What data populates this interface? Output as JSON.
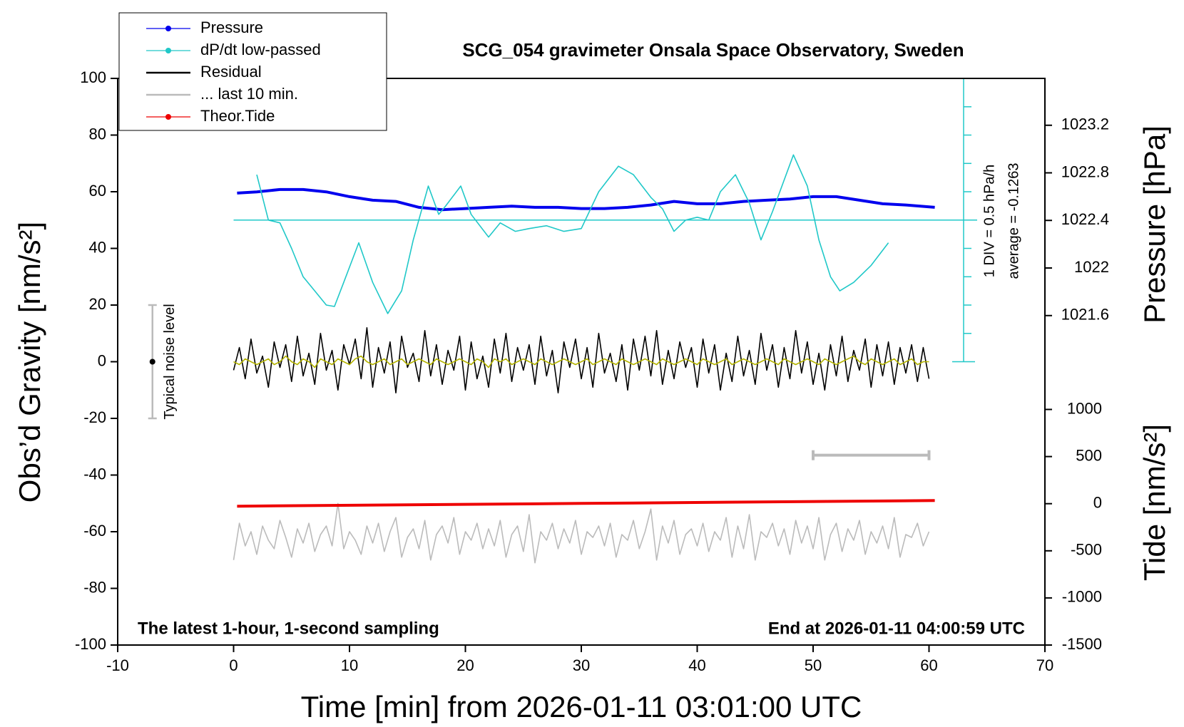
{
  "chart_data": {
    "type": "line",
    "title": "SCG_054 gravimeter Onsala Space Observatory, Sweden",
    "xlabel": "Time [min] from 2026-01-11 03:01:00 UTC",
    "ylabel": "Obs’d Gravity [nm/s²]",
    "y2label": "Pressure [hPa]",
    "y3label": "Tide [nm/s²]",
    "xlim": [
      -10,
      70
    ],
    "xticks": [
      -10,
      0,
      10,
      20,
      30,
      40,
      50,
      60,
      70
    ],
    "ylim": [
      -100,
      100
    ],
    "yticks": [
      -100,
      -80,
      -60,
      -40,
      -20,
      0,
      20,
      40,
      60,
      80,
      100
    ],
    "y2lim": [
      1018.83,
      1023.594
    ],
    "y2ticks": [
      1021.6,
      1022.0,
      1022.4,
      1022.8,
      1023.2
    ],
    "y3lim": [
      -1500,
      4513
    ],
    "y3ticks": [
      -1500,
      -1000,
      -500,
      0,
      500,
      1000
    ],
    "legend": "upper left",
    "annotations": [
      "1 DIV = 0.5 hPa/h",
      "average = -0.1263",
      "The latest 1-hour, 1-second sampling",
      "End at 2026-01-11 04:00:59 UTC"
    ],
    "noise_level": {
      "label": "Typical noise level",
      "x": -7,
      "value": 0,
      "error": 20
    },
    "last10_bar": {
      "x": [
        50,
        60
      ],
      "value": -33
    },
    "x": [
      0,
      0.5,
      1,
      1.5,
      2,
      2.5,
      3,
      3.5,
      4,
      4.5,
      5,
      5.5,
      6,
      6.5,
      7,
      7.5,
      8,
      8.5,
      9,
      9.5,
      10,
      10.5,
      11,
      11.5,
      12,
      12.5,
      13,
      13.5,
      14,
      14.5,
      15,
      15.5,
      16,
      16.5,
      17,
      17.5,
      18,
      18.5,
      19,
      19.5,
      20,
      20.5,
      21,
      21.5,
      22,
      22.5,
      23,
      23.5,
      24,
      24.5,
      25,
      25.5,
      26,
      26.5,
      27,
      27.5,
      28,
      28.5,
      29,
      29.5,
      30,
      30.5,
      31,
      31.5,
      32,
      32.5,
      33,
      33.5,
      34,
      34.5,
      35,
      35.5,
      36,
      36.5,
      37,
      37.5,
      38,
      38.5,
      39,
      39.5,
      40,
      40.5,
      41,
      41.5,
      42,
      42.5,
      43,
      43.5,
      44,
      44.5,
      45,
      45.5,
      46,
      46.5,
      47,
      47.5,
      48,
      48.5,
      49,
      49.5,
      50,
      50.5,
      51,
      51.5,
      52,
      52.5,
      53,
      53.5,
      54,
      54.5,
      55,
      55.5,
      56,
      56.5,
      57,
      57.5,
      58,
      58.5,
      59,
      59.5,
      60
    ],
    "series": [
      {
        "name": "Pressure",
        "color": "#0000ee",
        "marker": "o",
        "axis": "y2",
        "x": [
          0.3,
          2,
          4,
          6,
          8,
          10,
          12,
          14,
          16,
          18,
          20,
          22,
          24,
          26,
          28,
          30,
          32,
          34,
          36,
          38,
          40,
          42,
          44,
          46,
          48,
          50,
          52,
          54,
          56,
          58,
          60.5
        ],
        "values": [
          1022.63,
          1022.64,
          1022.66,
          1022.66,
          1022.64,
          1022.6,
          1022.57,
          1022.56,
          1022.51,
          1022.49,
          1022.5,
          1022.51,
          1022.52,
          1022.51,
          1022.51,
          1022.5,
          1022.5,
          1022.51,
          1022.53,
          1022.56,
          1022.54,
          1022.54,
          1022.56,
          1022.57,
          1022.58,
          1022.6,
          1022.6,
          1022.57,
          1022.54,
          1022.53,
          1022.51
        ]
      },
      {
        "name": "dP/dt low-passed",
        "color": "#20c8c8",
        "marker": "o",
        "x": [
          2,
          3,
          4,
          5,
          6,
          7,
          8,
          8.7,
          9.5,
          10.8,
          12,
          13.3,
          14.5,
          15.5,
          16.8,
          17.7,
          18.3,
          19.6,
          20.5,
          22,
          23,
          24.3,
          25.5,
          27,
          28.5,
          30,
          31.5,
          33.2,
          34.5,
          36,
          37,
          38,
          39,
          40,
          41,
          42,
          43.3,
          44.5,
          45.5,
          46.5,
          48.3,
          49.5,
          50.5,
          51.5,
          52.3,
          53.5,
          55,
          56.5
        ],
        "values": [
          66,
          50,
          49,
          40,
          30,
          25,
          20,
          19.5,
          28,
          42,
          28,
          17,
          25,
          43,
          62,
          52,
          55,
          62,
          52,
          44,
          49,
          46,
          47,
          48,
          46,
          47,
          60,
          69,
          66,
          58,
          54,
          46,
          50,
          51,
          50,
          60,
          66,
          56,
          43,
          53,
          73,
          62,
          43,
          30,
          25,
          28,
          34,
          42
        ]
      },
      {
        "name": "Residual",
        "color": "#000000",
        "values": [
          -3,
          5,
          -6,
          8,
          -4,
          2,
          -9,
          7,
          -2,
          6,
          -7,
          9,
          -5,
          3,
          -8,
          10,
          -3,
          4,
          -10,
          6,
          -1,
          8,
          -6,
          12,
          -9,
          5,
          -4,
          7,
          -11,
          9,
          -2,
          3,
          -7,
          11,
          -5,
          6,
          -8,
          4,
          -3,
          9,
          -10,
          7,
          -6,
          2,
          -9,
          8,
          -4,
          10,
          -7,
          5,
          -3,
          6,
          -8,
          9,
          -5,
          4,
          -11,
          7,
          -2,
          8,
          -6,
          5,
          -9,
          10,
          -4,
          3,
          -7,
          6,
          -10,
          8,
          -3,
          9,
          -5,
          11,
          -8,
          4,
          -6,
          7,
          -2,
          5,
          -9,
          8,
          -4,
          6,
          -10,
          3,
          -7,
          9,
          -5,
          4,
          -8,
          10,
          -3,
          6,
          -9,
          5,
          -6,
          11,
          -4,
          7,
          -8,
          3,
          -10,
          6,
          -5,
          9,
          -7,
          4,
          -3,
          8,
          -9,
          6,
          -5,
          7,
          -8,
          5,
          -4,
          6,
          -7,
          5,
          -6
        ]
      },
      {
        "color": "#b4b400",
        "values": [
          0,
          -1,
          1,
          0,
          -1,
          0,
          1,
          -1,
          0,
          2,
          0,
          -1,
          1,
          0,
          -2,
          1,
          0,
          -1,
          1,
          0,
          -1,
          1,
          2,
          0,
          -1,
          0,
          1,
          -1,
          0,
          1,
          -1,
          0,
          1,
          0,
          -1,
          1,
          0,
          -1,
          0,
          1,
          0,
          -1,
          1,
          0,
          -2,
          1,
          0,
          1,
          -1,
          0,
          1,
          0,
          -1,
          1,
          0,
          -1,
          0,
          1,
          0,
          -1,
          0,
          1,
          -1,
          0,
          1,
          0,
          -1,
          1,
          0,
          -1,
          0,
          1,
          0,
          -1,
          1,
          0,
          -1,
          0,
          1,
          0,
          -1,
          1,
          0,
          -1,
          0,
          1,
          -1,
          0,
          1,
          0,
          -1,
          0,
          1,
          0,
          -1,
          1,
          0,
          -1,
          0,
          1,
          0,
          -1,
          1,
          0,
          -1,
          0,
          1,
          2,
          0,
          -1,
          1,
          0,
          -1,
          0,
          1,
          -1,
          0,
          1,
          -1,
          0,
          0
        ]
      },
      {
        "name": "... last 10 min.",
        "color": "#bbbbbb",
        "values": [
          -70,
          -57,
          -65,
          -60,
          -68,
          -58,
          -63,
          -66,
          -56,
          -62,
          -69,
          -59,
          -64,
          -57,
          -67,
          -61,
          -58,
          -65,
          -50,
          -66,
          -60,
          -63,
          -68,
          -58,
          -64,
          -57,
          -67,
          -60,
          -55,
          -69,
          -62,
          -59,
          -66,
          -56,
          -70,
          -61,
          -58,
          -64,
          -55,
          -68,
          -60,
          -63,
          -57,
          -66,
          -59,
          -65,
          -56,
          -69,
          -61,
          -58,
          -67,
          -54,
          -71,
          -60,
          -63,
          -57,
          -66,
          -59,
          -64,
          -56,
          -68,
          -60,
          -62,
          -58,
          -65,
          -57,
          -69,
          -61,
          -63,
          -56,
          -66,
          -60,
          -52,
          -70,
          -58,
          -64,
          -56,
          -68,
          -61,
          -59,
          -65,
          -57,
          -67,
          -60,
          -63,
          -55,
          -69,
          -58,
          -66,
          -54,
          -70,
          -60,
          -62,
          -57,
          -65,
          -59,
          -68,
          -56,
          -64,
          -58,
          -66,
          -55,
          -70,
          -61,
          -57,
          -67,
          -59,
          -63,
          -56,
          -68,
          -60,
          -64,
          -58,
          -66,
          -55,
          -69,
          -61,
          -62,
          -57,
          -65,
          -60
        ]
      },
      {
        "name": "Theor.Tide",
        "color": "#ee0000",
        "marker": "o",
        "axis": "y3",
        "x": [
          0.3,
          30,
          60.5
        ],
        "values": [
          -27,
          3,
          33
        ]
      }
    ]
  }
}
